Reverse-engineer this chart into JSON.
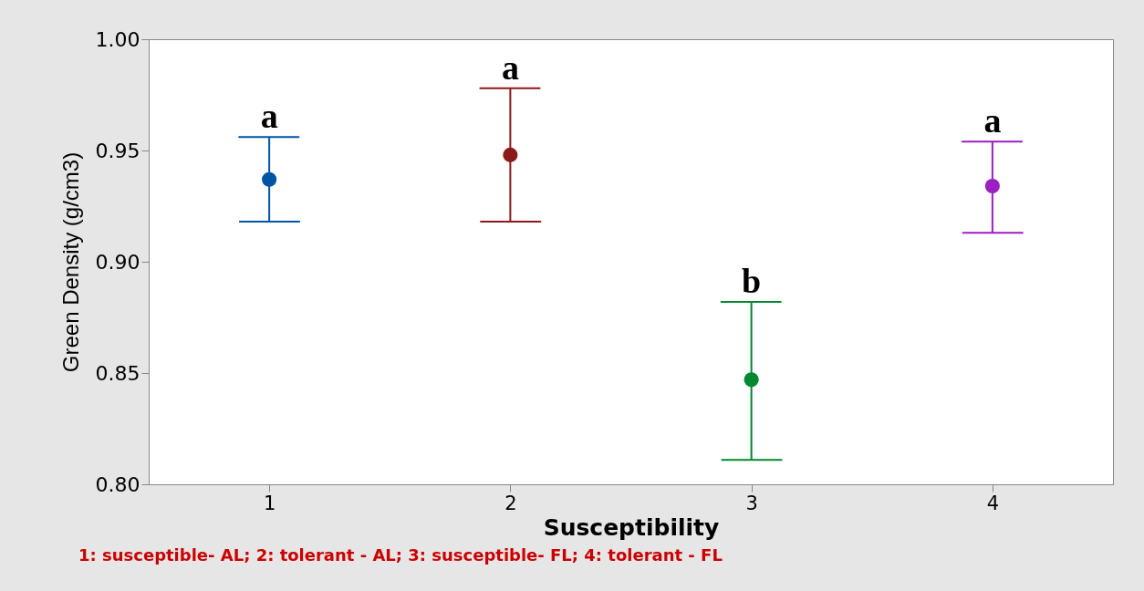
{
  "chart_data": {
    "type": "scatter",
    "xlabel": "Susceptibility",
    "ylabel": "Green Density (g/cm3)",
    "categories": [
      "1",
      "2",
      "3",
      "4"
    ],
    "values": [
      0.937,
      0.948,
      0.847,
      0.934
    ],
    "colors": [
      "#0054a6",
      "#8b1a1a",
      "#00892f",
      "#9b1fc1"
    ],
    "errors": [
      [
        0.918,
        0.956
      ],
      [
        0.918,
        0.978
      ],
      [
        0.811,
        0.882
      ],
      [
        0.913,
        0.954
      ]
    ],
    "ylim": [
      0.8,
      1.0
    ],
    "yticks": [
      {
        "value": 0.8,
        "label": "0.80"
      },
      0.85,
      {
        "value": 0.9,
        "label": "0.90"
      },
      0.95,
      {
        "value": 1.0,
        "label": "1.00"
      }
    ],
    "marker": "circle",
    "grid": false,
    "annotations": [
      {
        "text": "a",
        "x": "1",
        "y": 0.956
      },
      {
        "text": "a",
        "x": "2",
        "y": 0.978
      },
      {
        "text": "b",
        "x": "3",
        "y": 0.882
      },
      {
        "text": "a",
        "x": "4",
        "y": 0.954
      },
      "1: susceptible- AL;    2: tolerant - AL;    3: susceptible- FL; 4: tolerant - FL"
    ]
  }
}
